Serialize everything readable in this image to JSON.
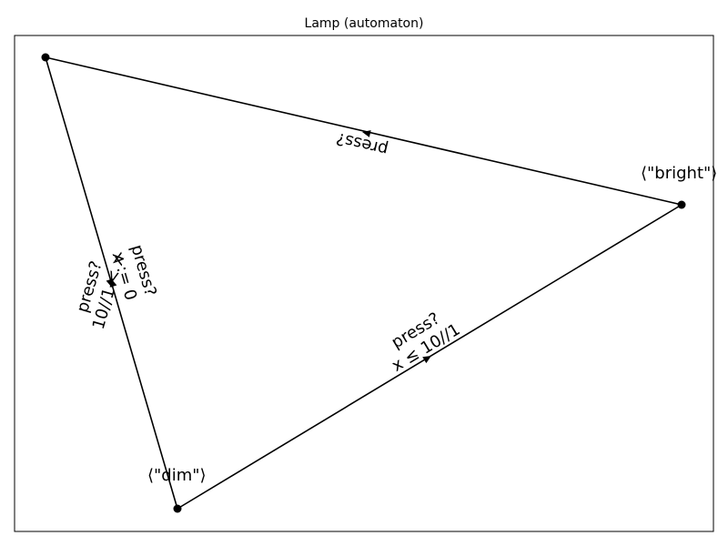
{
  "title": "Lamp (automaton)",
  "colors": {
    "line": "#000000",
    "background": "#ffffff"
  },
  "states": [
    {
      "id": "top",
      "label": ""
    },
    {
      "id": "bright",
      "label": "⟨\"bright\"⟩"
    },
    {
      "id": "dim",
      "label": "⟨\"dim\"⟩"
    }
  ],
  "transitions": [
    {
      "id": "bright-to-top",
      "lines": [
        "press?"
      ]
    },
    {
      "id": "dim-to-bright",
      "lines": [
        "press?",
        "x ≤ 10//1"
      ]
    },
    {
      "id": "dim-to-top",
      "lines": [
        "press?",
        "10//1 < x"
      ]
    },
    {
      "id": "top-to-dim",
      "lines": [
        "press?",
        "x := 0"
      ]
    }
  ]
}
